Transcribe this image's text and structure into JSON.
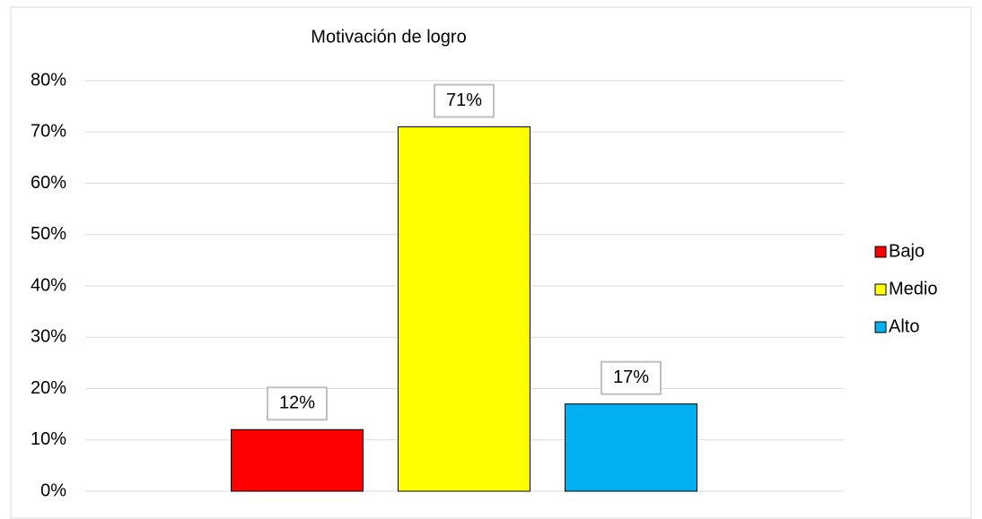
{
  "chart_data": {
    "type": "bar",
    "title": "Motivación de logro",
    "categories": [
      "Bajo",
      "Medio",
      "Alto"
    ],
    "values": [
      12,
      71,
      17
    ],
    "value_labels": [
      "12%",
      "71%",
      "17%"
    ],
    "colors": [
      "#ff0000",
      "#ffff00",
      "#00b0f0"
    ],
    "ylim": [
      0,
      80
    ],
    "yticks": [
      {
        "value": 0,
        "label": "0%"
      },
      {
        "value": 10,
        "label": "10%"
      },
      {
        "value": 20,
        "label": "20%"
      },
      {
        "value": 30,
        "label": "30%"
      },
      {
        "value": 40,
        "label": "40%"
      },
      {
        "value": 50,
        "label": "50%"
      },
      {
        "value": 60,
        "label": "60%"
      },
      {
        "value": 70,
        "label": "70%"
      },
      {
        "value": 80,
        "label": "80%"
      }
    ],
    "grid": true,
    "legend": "right"
  }
}
